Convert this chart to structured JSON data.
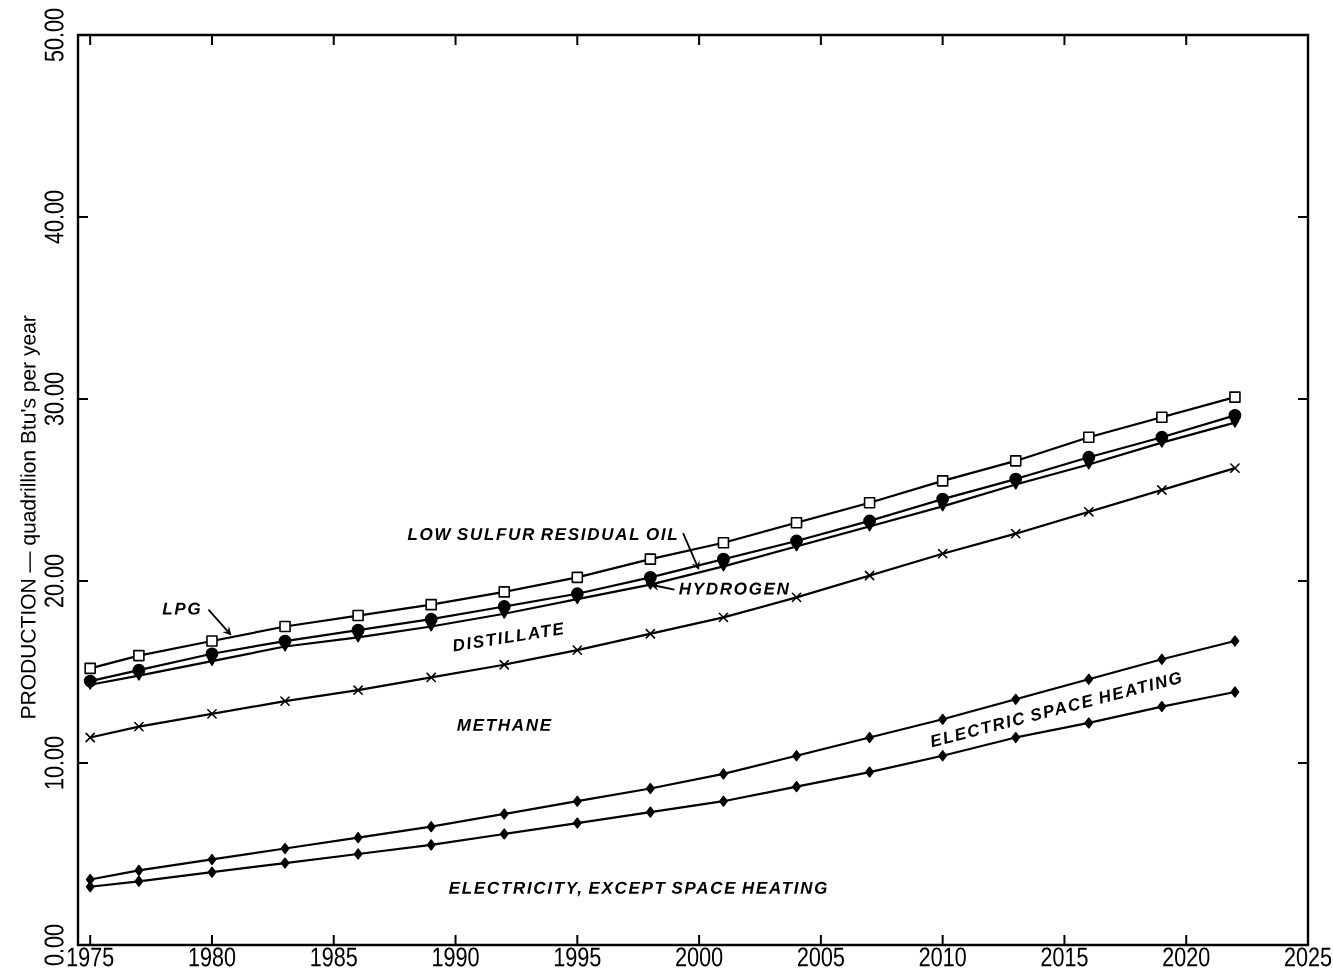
{
  "chart_data": {
    "type": "line",
    "ylabel": "PRODUCTION — quadrillion Btu's per year",
    "x": [
      1975,
      1977,
      1980,
      1983,
      1986,
      1989,
      1992,
      1995,
      1998,
      2001,
      2004,
      2007,
      2010,
      2013,
      2016,
      2019,
      2022
    ],
    "series": [
      {
        "color": "#000000",
        "marker": "square",
        "values": [
          15.2,
          15.9,
          16.7,
          17.5,
          18.1,
          18.7,
          19.4,
          20.2,
          21.2,
          22.1,
          23.2,
          24.3,
          25.5,
          26.6,
          27.9,
          29.0,
          30.1
        ]
      },
      {
        "color": "#000000",
        "marker": "circle",
        "values": [
          14.5,
          15.1,
          16.0,
          16.7,
          17.3,
          17.9,
          18.6,
          19.3,
          20.2,
          21.2,
          22.2,
          23.3,
          24.5,
          25.6,
          26.8,
          27.9,
          29.1
        ]
      },
      {
        "color": "#000000",
        "marker": "triangle",
        "values": [
          14.3,
          14.8,
          15.6,
          16.4,
          16.9,
          17.5,
          18.2,
          19.0,
          19.8,
          20.8,
          21.9,
          23.0,
          24.1,
          25.3,
          26.4,
          27.6,
          28.7
        ]
      },
      {
        "color": "#000000",
        "marker": "cross",
        "values": [
          11.4,
          12.0,
          12.7,
          13.4,
          14.0,
          14.7,
          15.4,
          16.2,
          17.1,
          18.0,
          19.1,
          20.3,
          21.5,
          22.6,
          23.8,
          25.0,
          26.2
        ]
      },
      {
        "color": "#000000",
        "marker": "diamond",
        "values": [
          3.6,
          4.1,
          4.7,
          5.3,
          5.9,
          6.5,
          7.2,
          7.9,
          8.6,
          9.4,
          10.4,
          11.4,
          12.4,
          13.5,
          14.6,
          15.7,
          16.7
        ]
      },
      {
        "color": "#000000",
        "marker": "diamond",
        "values": [
          3.2,
          3.5,
          4.0,
          4.5,
          5.0,
          5.5,
          6.1,
          6.7,
          7.3,
          7.9,
          8.7,
          9.5,
          10.4,
          11.4,
          12.2,
          13.1,
          13.9
        ]
      }
    ],
    "xlim": [
      1974.5,
      2025
    ],
    "ylim": [
      0,
      50
    ],
    "xticks": [
      1975,
      1980,
      1985,
      1990,
      1995,
      2000,
      2005,
      2010,
      2015,
      2020,
      2025
    ],
    "yticks": [
      {
        "value": 0,
        "label": "0.00"
      },
      {
        "value": 10,
        "label": "10.00"
      },
      {
        "value": 20,
        "label": "20.00"
      },
      {
        "value": 30,
        "label": "30.00"
      },
      {
        "value": 40,
        "label": "40.00"
      },
      {
        "value": 50,
        "label": "50.00"
      }
    ],
    "annotations": [
      {
        "text": "LPG",
        "x": 1980.8,
        "y": 17.0
      },
      {
        "text": "LOW SULFUR RESIDUAL OIL",
        "x": 2000,
        "y": 20.6
      },
      {
        "text": "HYDROGEN",
        "x": 1998,
        "y": 19.8
      },
      "DISTILLATE",
      "METHANE",
      "ELECTRIC SPACE HEATING",
      "ELECTRICITY, EXCEPT SPACE HEATING"
    ]
  }
}
